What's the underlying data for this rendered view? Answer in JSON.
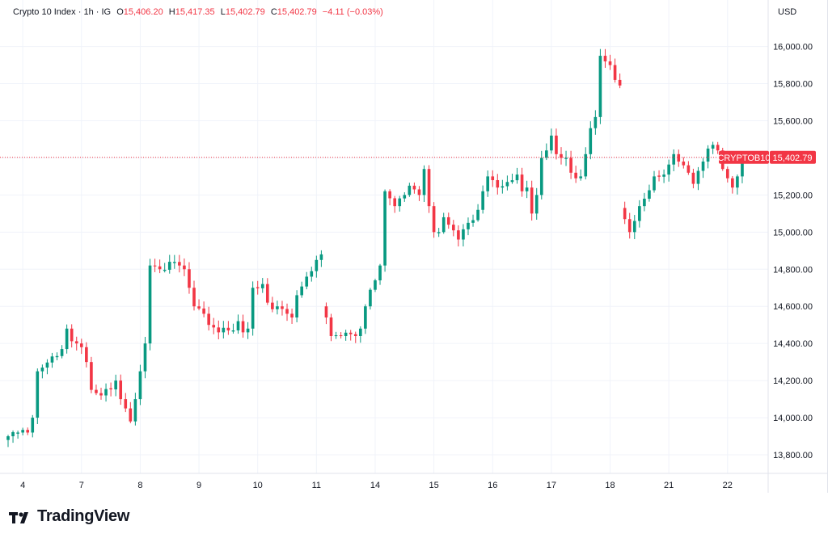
{
  "legend": {
    "symbol_name": "Crypto 10 Index",
    "interval": "1h",
    "source": "IG",
    "open_label": "O",
    "open": "15,406.20",
    "high_label": "H",
    "high": "15,417.35",
    "low_label": "L",
    "low": "15,402.79",
    "close_label": "C",
    "close": "15,402.79",
    "change": "−4.11 (−0.03%)"
  },
  "currency": "USD",
  "price_tag": {
    "symbol": "CRYPTOB10",
    "value": "15,402.79",
    "price": 15402.79
  },
  "brand": {
    "name": "TradingView"
  },
  "colors": {
    "up": "#089981",
    "down": "#f23645",
    "grid": "#f0f3fa",
    "price_line": "#f23645"
  },
  "chart_data": {
    "type": "candlestick",
    "title": "Crypto 10 Index · 1h · IG",
    "y_ticks": [
      13800,
      14000,
      14200,
      14400,
      14600,
      14800,
      15000,
      15200,
      15400,
      15600,
      15800,
      16000
    ],
    "y_tick_labels": [
      "13,800.00",
      "14,000.00",
      "14,200.00",
      "14,400.00",
      "14,600.00",
      "14,800.00",
      "15,000.00",
      "15,200.00",
      "15,400.00",
      "15,600.00",
      "15,800.00",
      "16,000.00"
    ],
    "ylim": [
      13700,
      16120
    ],
    "x_tick_labels": [
      "4",
      "7",
      "8",
      "9",
      "10",
      "11",
      "14",
      "15",
      "16",
      "17",
      "18",
      "21",
      "22"
    ],
    "x_tick_index": [
      3,
      15,
      27,
      39,
      51,
      63,
      75,
      87,
      99,
      111,
      123,
      135,
      147
    ],
    "x_count": 152,
    "anchors": [
      [
        0,
        13900
      ],
      [
        2,
        13920
      ],
      [
        4,
        13920
      ],
      [
        5,
        14000
      ],
      [
        6,
        14250
      ],
      [
        7,
        14270
      ],
      [
        9,
        14330
      ],
      [
        11,
        14370
      ],
      [
        12,
        14480
      ],
      [
        14,
        14400
      ],
      [
        15,
        14380
      ],
      [
        16,
        14300
      ],
      [
        17,
        14150
      ],
      [
        19,
        14120
      ],
      [
        22,
        14200
      ],
      [
        23,
        14100
      ],
      [
        24,
        14050
      ],
      [
        25,
        13980
      ],
      [
        26,
        14100
      ],
      [
        27,
        14250
      ],
      [
        28,
        14400
      ],
      [
        29,
        14820
      ],
      [
        31,
        14800
      ],
      [
        33,
        14840
      ],
      [
        35,
        14820
      ],
      [
        36,
        14800
      ],
      [
        37,
        14700
      ],
      [
        38,
        14600
      ],
      [
        40,
        14560
      ],
      [
        41,
        14500
      ],
      [
        43,
        14460
      ],
      [
        45,
        14470
      ],
      [
        47,
        14520
      ],
      [
        48,
        14460
      ],
      [
        49,
        14480
      ],
      [
        50,
        14700
      ],
      [
        52,
        14720
      ],
      [
        53,
        14620
      ],
      [
        55,
        14600
      ],
      [
        57,
        14560
      ],
      [
        58,
        14540
      ],
      [
        59,
        14660
      ],
      [
        61,
        14760
      ],
      [
        63,
        14850
      ],
      [
        64,
        14880
      ],
      [
        65,
        14540
      ],
      [
        66,
        14440
      ],
      [
        68,
        14440
      ],
      [
        70,
        14450
      ],
      [
        71,
        14440
      ],
      [
        72,
        14480
      ],
      [
        73,
        14600
      ],
      [
        75,
        14740
      ],
      [
        76,
        14820
      ],
      [
        77,
        15220
      ],
      [
        79,
        15140
      ],
      [
        81,
        15200
      ],
      [
        82,
        15250
      ],
      [
        83,
        15230
      ],
      [
        84,
        15200
      ],
      [
        85,
        15340
      ],
      [
        86,
        15140
      ],
      [
        87,
        15000
      ],
      [
        88,
        15000
      ],
      [
        89,
        15080
      ],
      [
        90,
        15040
      ],
      [
        92,
        14960
      ],
      [
        94,
        15050
      ],
      [
        96,
        15120
      ],
      [
        97,
        15220
      ],
      [
        98,
        15300
      ],
      [
        99,
        15280
      ],
      [
        100,
        15240
      ],
      [
        102,
        15270
      ],
      [
        104,
        15310
      ],
      [
        105,
        15220
      ],
      [
        106,
        15240
      ],
      [
        107,
        15100
      ],
      [
        108,
        15200
      ],
      [
        109,
        15400
      ],
      [
        110,
        15440
      ],
      [
        111,
        15520
      ],
      [
        112,
        15420
      ],
      [
        113,
        15400
      ],
      [
        114,
        15400
      ],
      [
        115,
        15320
      ],
      [
        116,
        15290
      ],
      [
        117,
        15300
      ],
      [
        118,
        15420
      ],
      [
        119,
        15560
      ],
      [
        120,
        15620
      ],
      [
        121,
        15950
      ],
      [
        123,
        15900
      ],
      [
        124,
        15820
      ],
      [
        125,
        15790
      ],
      [
        126,
        15070
      ],
      [
        127,
        15000
      ],
      [
        128,
        15060
      ],
      [
        129,
        15140
      ],
      [
        130,
        15180
      ],
      [
        132,
        15300
      ],
      [
        134,
        15310
      ],
      [
        136,
        15420
      ],
      [
        137,
        15380
      ],
      [
        138,
        15360
      ],
      [
        139,
        15320
      ],
      [
        140,
        15260
      ],
      [
        141,
        15330
      ],
      [
        142,
        15380
      ],
      [
        143,
        15450
      ],
      [
        144,
        15470
      ],
      [
        145,
        15440
      ],
      [
        146,
        15340
      ],
      [
        147,
        15290
      ],
      [
        148,
        15240
      ],
      [
        149,
        15300
      ],
      [
        150,
        15402.79
      ]
    ]
  }
}
